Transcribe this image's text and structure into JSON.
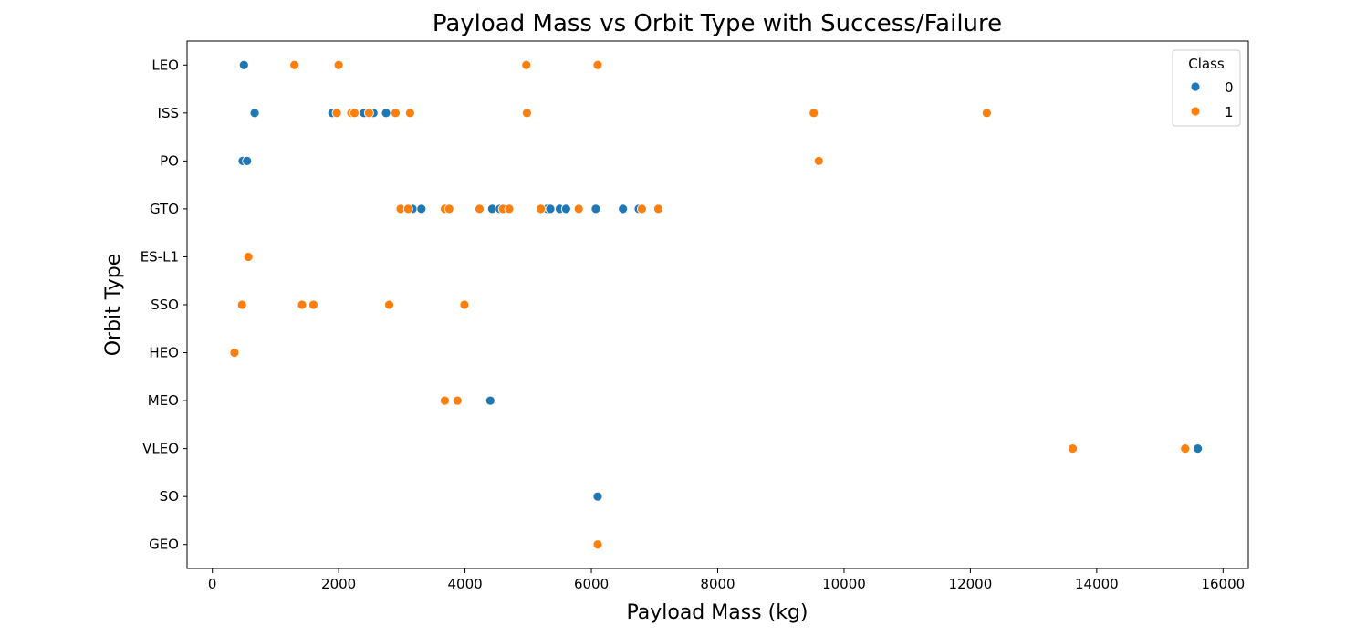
{
  "chart_data": {
    "type": "scatter",
    "title": "Payload Mass vs Orbit Type with Success/Failure",
    "xlabel": "Payload Mass (kg)",
    "ylabel": "Orbit Type",
    "xlim": [
      -400,
      16400
    ],
    "xticks": [
      0,
      2000,
      4000,
      6000,
      8000,
      10000,
      12000,
      14000,
      16000
    ],
    "categories": [
      "LEO",
      "ISS",
      "PO",
      "GTO",
      "ES-L1",
      "SSO",
      "HEO",
      "MEO",
      "VLEO",
      "SO",
      "GEO"
    ],
    "grid": false,
    "legend": {
      "title": "Class",
      "position": "top-right"
    },
    "series": [
      {
        "name": "0",
        "color": "#1f77b4",
        "points": [
          {
            "x": 500,
            "y": "LEO"
          },
          {
            "x": 670,
            "y": "ISS"
          },
          {
            "x": 1900,
            "y": "ISS"
          },
          {
            "x": 2400,
            "y": "ISS"
          },
          {
            "x": 2550,
            "y": "ISS"
          },
          {
            "x": 2750,
            "y": "ISS"
          },
          {
            "x": 480,
            "y": "PO"
          },
          {
            "x": 550,
            "y": "PO"
          },
          {
            "x": 3170,
            "y": "GTO"
          },
          {
            "x": 3310,
            "y": "GTO"
          },
          {
            "x": 4430,
            "y": "GTO"
          },
          {
            "x": 4550,
            "y": "GTO"
          },
          {
            "x": 5300,
            "y": "GTO"
          },
          {
            "x": 5350,
            "y": "GTO"
          },
          {
            "x": 5500,
            "y": "GTO"
          },
          {
            "x": 5600,
            "y": "GTO"
          },
          {
            "x": 6070,
            "y": "GTO"
          },
          {
            "x": 6500,
            "y": "GTO"
          },
          {
            "x": 6750,
            "y": "GTO"
          },
          {
            "x": 4400,
            "y": "MEO"
          },
          {
            "x": 15600,
            "y": "VLEO"
          },
          {
            "x": 6100,
            "y": "SO"
          }
        ]
      },
      {
        "name": "1",
        "color": "#ff7f0e",
        "points": [
          {
            "x": 1300,
            "y": "LEO"
          },
          {
            "x": 2000,
            "y": "LEO"
          },
          {
            "x": 4970,
            "y": "LEO"
          },
          {
            "x": 6100,
            "y": "LEO"
          },
          {
            "x": 1970,
            "y": "ISS"
          },
          {
            "x": 2200,
            "y": "ISS"
          },
          {
            "x": 2250,
            "y": "ISS"
          },
          {
            "x": 2480,
            "y": "ISS"
          },
          {
            "x": 2900,
            "y": "ISS"
          },
          {
            "x": 3130,
            "y": "ISS"
          },
          {
            "x": 4980,
            "y": "ISS"
          },
          {
            "x": 9520,
            "y": "ISS"
          },
          {
            "x": 12260,
            "y": "ISS"
          },
          {
            "x": 9600,
            "y": "PO"
          },
          {
            "x": 2980,
            "y": "GTO"
          },
          {
            "x": 3100,
            "y": "GTO"
          },
          {
            "x": 3680,
            "y": "GTO"
          },
          {
            "x": 3750,
            "y": "GTO"
          },
          {
            "x": 4230,
            "y": "GTO"
          },
          {
            "x": 4600,
            "y": "GTO"
          },
          {
            "x": 4700,
            "y": "GTO"
          },
          {
            "x": 5200,
            "y": "GTO"
          },
          {
            "x": 5800,
            "y": "GTO"
          },
          {
            "x": 6800,
            "y": "GTO"
          },
          {
            "x": 7060,
            "y": "GTO"
          },
          {
            "x": 570,
            "y": "ES-L1"
          },
          {
            "x": 470,
            "y": "SSO"
          },
          {
            "x": 1420,
            "y": "SSO"
          },
          {
            "x": 1600,
            "y": "SSO"
          },
          {
            "x": 2800,
            "y": "SSO"
          },
          {
            "x": 3990,
            "y": "SSO"
          },
          {
            "x": 350,
            "y": "HEO"
          },
          {
            "x": 3680,
            "y": "MEO"
          },
          {
            "x": 3880,
            "y": "MEO"
          },
          {
            "x": 13620,
            "y": "VLEO"
          },
          {
            "x": 15400,
            "y": "VLEO"
          },
          {
            "x": 6100,
            "y": "GEO"
          }
        ]
      }
    ]
  }
}
